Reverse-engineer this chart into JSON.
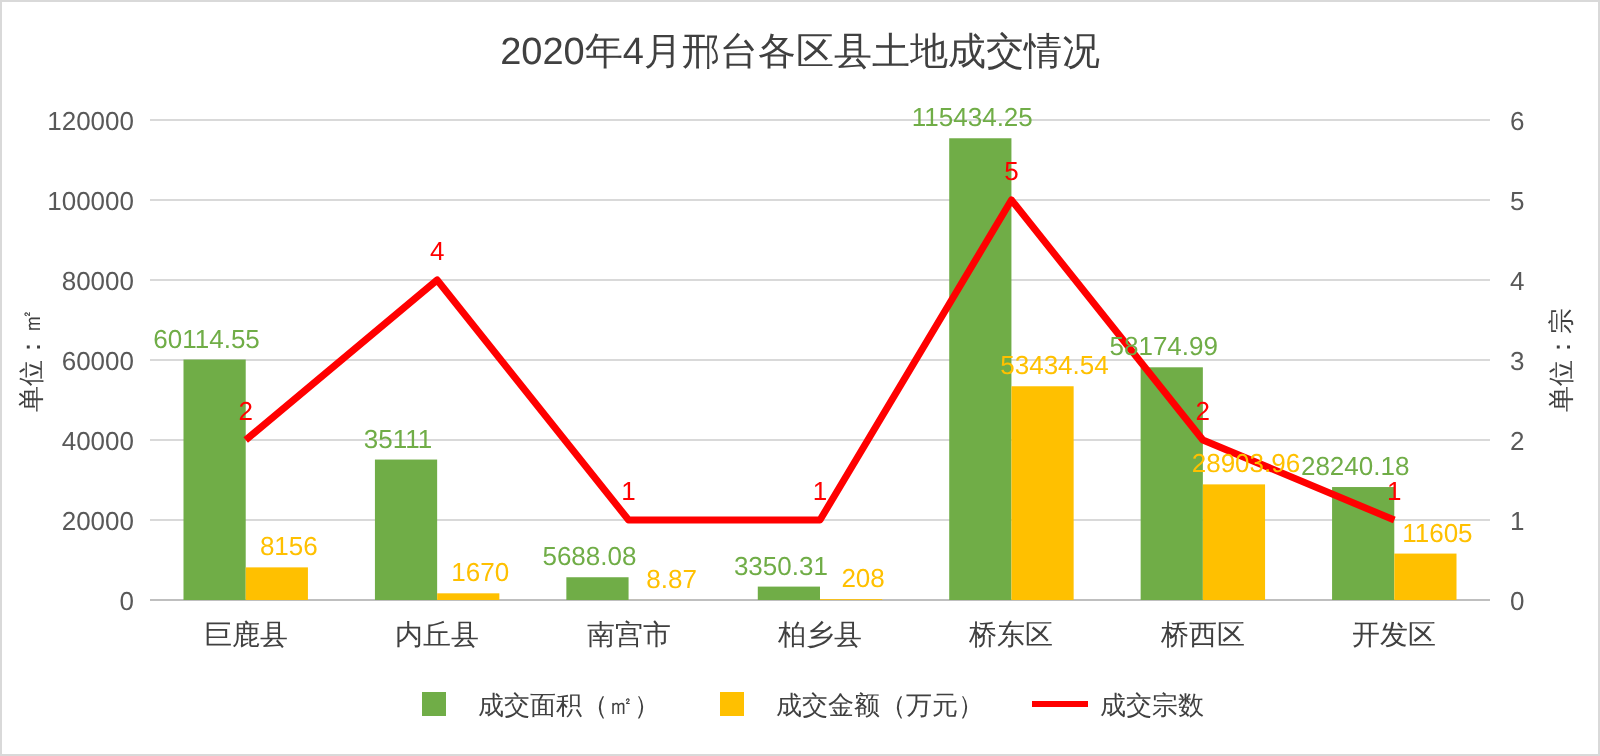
{
  "chart_data": {
    "type": "bar",
    "title": "2020年4月邢台各区县土地成交情况",
    "ylabel": "单位：㎡",
    "y2label": "单位：宗",
    "categories": [
      "巨鹿县",
      "内丘县",
      "南宫市",
      "柏乡县",
      "桥东区",
      "桥西区",
      "开发区"
    ],
    "series": [
      {
        "name": "成交面积（㎡）",
        "color": "#70ad47",
        "values": [
          60114.55,
          35111,
          5688.08,
          3350.31,
          115434.25,
          58174.99,
          28240.18
        ]
      },
      {
        "name": "成交金额（万元）",
        "color": "#ffc000",
        "values": [
          8156,
          1670,
          8.87,
          208,
          53434.54,
          28903.96,
          11605
        ]
      },
      {
        "name": "成交宗数",
        "color": "#ff0000",
        "type": "line",
        "axis": "y2",
        "values": [
          2,
          4,
          1,
          1,
          5,
          2,
          1
        ]
      }
    ],
    "ylim": [
      0,
      120000
    ],
    "yticks": [
      0,
      20000,
      40000,
      60000,
      80000,
      100000,
      120000
    ],
    "y2lim": [
      0,
      6
    ],
    "y2ticks": [
      0,
      1,
      2,
      3,
      4,
      5,
      6
    ],
    "grid": "y",
    "legend": "bottom",
    "data_labels": true,
    "marker": "none",
    "line_style": "solid"
  }
}
